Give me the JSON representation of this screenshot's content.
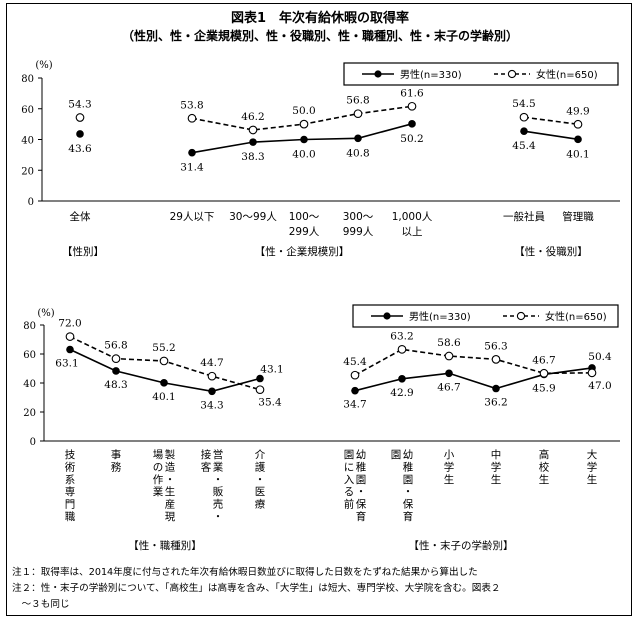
{
  "title": "図表1　年次有給休暇の取得率",
  "subtitle": "（性別、性・企業規模別、性・役職別、性・職種別、性・末子の学齢別）",
  "legend": {
    "male": "男性(n=330)",
    "female": "女性(n=650)"
  },
  "unit": "(%)",
  "notes": [
    "注１：取得率は、2014年度に付与された年次有給休暇日数並びに取得した日数をたずねた結果から算出した",
    "注２：性・末子の学齢別について、「高校生」は高専を含み、「大学生」は短大、専門学校、大学院を含む。図表２",
    "　～３も同じ"
  ],
  "chart_data": [
    {
      "type": "line",
      "panel": "top",
      "ylim": [
        0,
        80
      ],
      "yticks": [
        0,
        20,
        40,
        60,
        80
      ],
      "ylabel": "(%)",
      "legend_position": "top-right",
      "groups": [
        {
          "name": "【性別】",
          "categories": [
            [
              "全体"
            ]
          ],
          "series": [
            {
              "name": "男性(n=330)",
              "values": [
                43.6
              ],
              "labels": [
                "43.6"
              ]
            },
            {
              "name": "女性(n=650)",
              "values": [
                54.3
              ],
              "labels": [
                "54.3"
              ]
            }
          ]
        },
        {
          "name": "【性・企業規模別】",
          "categories": [
            [
              "29人以下"
            ],
            [
              "30～99人"
            ],
            [
              "100～",
              "299人"
            ],
            [
              "300～",
              "999人"
            ],
            [
              "1,000人",
              "以上"
            ]
          ],
          "series": [
            {
              "name": "男性(n=330)",
              "values": [
                31.4,
                38.3,
                40.0,
                40.8,
                50.2
              ],
              "labels": [
                "31.4",
                "38.3",
                "40.0",
                "40.8",
                "50.2"
              ]
            },
            {
              "name": "女性(n=650)",
              "values": [
                53.8,
                46.2,
                50.0,
                56.8,
                61.6
              ],
              "labels": [
                "53.8",
                "46.2",
                "50.0",
                "56.8",
                "61.6"
              ]
            }
          ]
        },
        {
          "name": "【性・役職別】",
          "categories": [
            [
              "一般社員"
            ],
            [
              "管理職"
            ]
          ],
          "series": [
            {
              "name": "男性(n=330)",
              "values": [
                45.4,
                40.1
              ],
              "labels": [
                "45.4",
                "40.1"
              ]
            },
            {
              "name": "女性(n=650)",
              "values": [
                54.5,
                49.9
              ],
              "labels": [
                "54.5",
                "49.9"
              ]
            }
          ]
        }
      ]
    },
    {
      "type": "line",
      "panel": "bottom",
      "ylim": [
        0,
        80
      ],
      "yticks": [
        0,
        20,
        40,
        60,
        80
      ],
      "ylabel": "(%)",
      "legend_position": "top-right",
      "groups": [
        {
          "name": "【性・職種別】",
          "categories": [
            "技術系専門職",
            "事務",
            "製造・生産現場の作業",
            "営業・販売・接客",
            "介護・医療"
          ],
          "series": [
            {
              "name": "男性(n=330)",
              "values": [
                63.1,
                48.3,
                40.1,
                34.3,
                43.1
              ],
              "labels": [
                "63.1",
                "48.3",
                "40.1",
                "34.3",
                "43.1"
              ]
            },
            {
              "name": "女性(n=650)",
              "values": [
                72.0,
                56.8,
                55.2,
                44.7,
                35.4
              ],
              "labels": [
                "72.0",
                "56.8",
                "55.2",
                "44.7",
                "35.4"
              ]
            }
          ]
        },
        {
          "name": "【性・末子の学齢別】",
          "categories": [
            "幼稚園・保育園に入る前",
            "幼稚園・保育園",
            "小学生",
            "中学生",
            "高校生",
            "大学生"
          ],
          "series": [
            {
              "name": "男性(n=330)",
              "values": [
                34.7,
                42.9,
                46.7,
                36.2,
                45.9,
                50.4
              ],
              "labels": [
                "34.7",
                "42.9",
                "46.7",
                "36.2",
                "45.9",
                "50.4"
              ]
            },
            {
              "name": "女性(n=650)",
              "values": [
                45.4,
                63.2,
                58.6,
                56.3,
                46.7,
                47.0
              ],
              "labels": [
                "45.4",
                "63.2",
                "58.6",
                "56.3",
                "46.7",
                "47.0"
              ]
            }
          ]
        }
      ]
    }
  ]
}
